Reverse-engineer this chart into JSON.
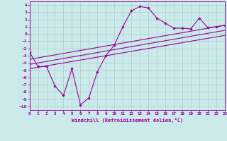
{
  "xlabel": "Windchill (Refroidissement éolien,°C)",
  "ylabel": "",
  "bg_color": "#cceaea",
  "grid_color": "#aacccc",
  "line_color": "#990099",
  "xlim": [
    0,
    23
  ],
  "ylim": [
    -10.5,
    4.5
  ],
  "xticks": [
    0,
    1,
    2,
    3,
    4,
    5,
    6,
    7,
    8,
    9,
    10,
    11,
    12,
    13,
    14,
    15,
    16,
    17,
    18,
    19,
    20,
    21,
    22,
    23
  ],
  "yticks": [
    -10,
    -9,
    -8,
    -7,
    -6,
    -5,
    -4,
    -3,
    -2,
    -1,
    0,
    1,
    2,
    3,
    4
  ],
  "main_x": [
    0,
    1,
    2,
    3,
    4,
    5,
    6,
    7,
    8,
    9,
    10,
    11,
    12,
    13,
    14,
    15,
    16,
    17,
    18,
    19,
    20,
    21,
    22,
    23
  ],
  "main_y": [
    -2.5,
    -4.5,
    -4.5,
    -7.2,
    -8.5,
    -4.8,
    -9.8,
    -8.8,
    -5.2,
    -3.0,
    -1.5,
    1.0,
    3.2,
    3.8,
    3.6,
    2.2,
    1.5,
    0.8,
    0.8,
    0.7,
    2.2,
    0.9,
    1.0,
    1.2
  ],
  "line1_x": [
    0,
    23
  ],
  "line1_y": [
    -3.5,
    1.2
  ],
  "line2_x": [
    0,
    23
  ],
  "line2_y": [
    -4.2,
    0.5
  ],
  "line3_x": [
    0,
    23
  ],
  "line3_y": [
    -4.8,
    -0.2
  ]
}
